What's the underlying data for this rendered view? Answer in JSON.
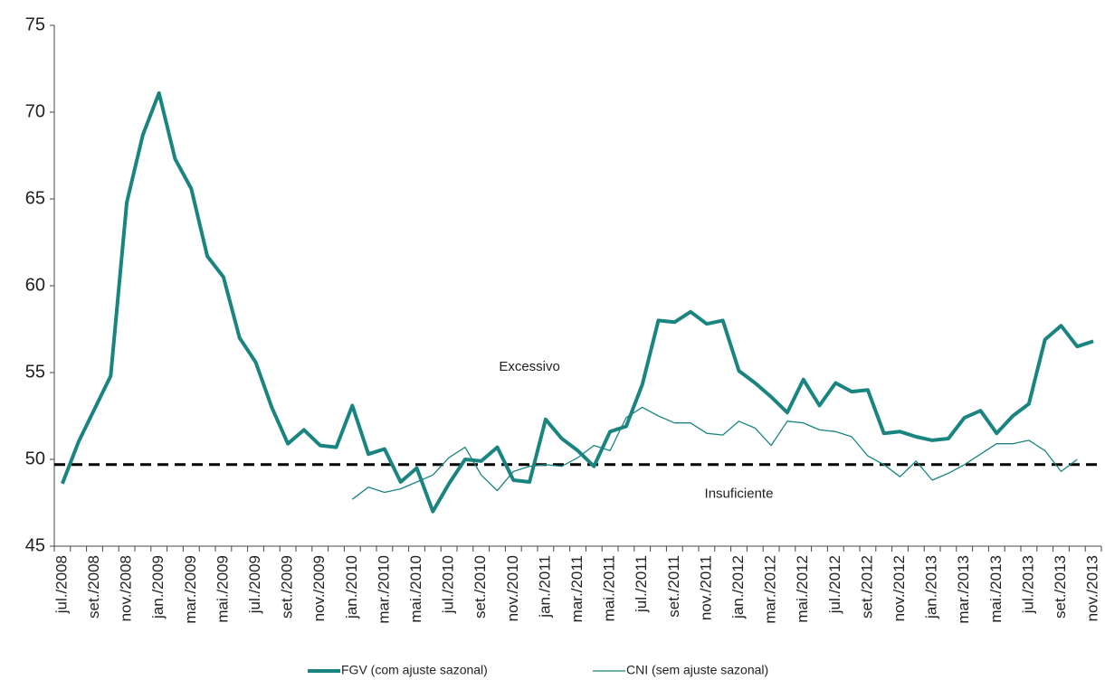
{
  "chart_data": {
    "type": "line",
    "categories": [
      "jul./2008",
      null,
      "set./2008",
      null,
      "nov./2008",
      null,
      "jan./2009",
      null,
      "mar./2009",
      null,
      "mai./2009",
      null,
      "jul./2009",
      null,
      "set./2009",
      null,
      "nov./2009",
      null,
      "jan./2010",
      null,
      "mar./2010",
      null,
      "mai./2010",
      null,
      "jul./2010",
      null,
      "set./2010",
      null,
      "nov./2010",
      null,
      "jan./2011",
      null,
      "mar./2011",
      null,
      "mai./2011",
      null,
      "jul./2011",
      null,
      "set./2011",
      null,
      "nov./2011",
      null,
      "jan./2012",
      null,
      "mar./2012",
      null,
      "mai./2012",
      null,
      "jul./2012",
      null,
      "set./2012",
      null,
      "nov./2012",
      null,
      "jan./2013",
      null,
      "mar./2013",
      null,
      "mai./2013",
      null,
      "jul./2013",
      null,
      "set./2013",
      null,
      "nov./2013"
    ],
    "series": [
      {
        "name": "FGV (com ajuste sazonal)",
        "color": "#1a8580",
        "width": 4,
        "values": [
          48.6,
          51.0,
          52.9,
          54.8,
          64.8,
          68.7,
          71.1,
          67.3,
          65.6,
          61.7,
          60.5,
          57.0,
          55.6,
          53.0,
          50.9,
          51.7,
          50.8,
          50.7,
          53.1,
          50.3,
          50.6,
          48.7,
          49.5,
          47.0,
          48.6,
          50.0,
          49.9,
          50.7,
          48.8,
          48.7,
          52.3,
          51.2,
          50.5,
          49.6,
          51.6,
          51.9,
          54.3,
          58.0,
          57.9,
          58.5,
          57.8,
          58.0,
          55.1,
          54.4,
          53.6,
          52.7,
          54.6,
          53.1,
          54.4,
          53.9,
          54.0,
          51.5,
          51.6,
          51.3,
          51.1,
          51.2,
          52.4,
          52.8,
          51.5,
          52.5,
          53.2,
          56.9,
          57.7,
          56.5,
          56.8
        ]
      },
      {
        "name": "CNI (sem ajuste sazonal)",
        "color": "#1a8580",
        "width": 1.3,
        "values": [
          null,
          null,
          null,
          null,
          null,
          null,
          null,
          null,
          null,
          null,
          null,
          null,
          null,
          null,
          null,
          null,
          null,
          null,
          47.7,
          48.4,
          48.1,
          48.3,
          48.7,
          49.1,
          50.1,
          50.7,
          49.1,
          48.2,
          49.3,
          49.6,
          49.7,
          49.6,
          50.1,
          50.8,
          50.5,
          52.4,
          53.0,
          52.5,
          52.1,
          52.1,
          51.5,
          51.4,
          52.2,
          51.8,
          50.8,
          52.2,
          52.1,
          51.7,
          51.6,
          51.3,
          50.2,
          49.7,
          49.0,
          49.9,
          48.8,
          49.2,
          49.7,
          50.3,
          50.9,
          50.9,
          51.1,
          50.5,
          49.3,
          50.0,
          null
        ]
      }
    ],
    "ylim": [
      45,
      75
    ],
    "yticks": [
      45,
      50,
      55,
      60,
      65,
      70,
      75
    ],
    "threshold": 49.7,
    "annotations": [
      {
        "text": "Excessivo",
        "x": 29,
        "y": 55.3
      },
      {
        "text": "Insuficiente",
        "x": 42,
        "y": 48.0
      }
    ],
    "legend": "bottom"
  }
}
